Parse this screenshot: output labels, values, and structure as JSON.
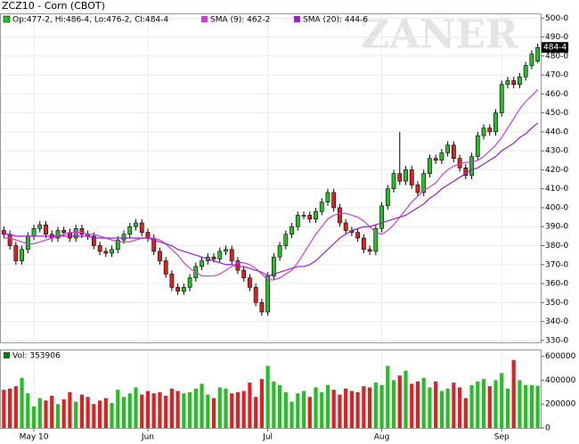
{
  "chart_data": [
    {
      "type": "candlestick",
      "title": "ZCZ10 - Corn (CBOT)",
      "ohlc_label": "Op:477-2, Hi:486-4, Lo:476-2, Cl:484-4",
      "last_label": "484-4",
      "watermark": "ZANER",
      "up_color": "#22c022",
      "down_color": "#e02020",
      "grid": true,
      "xlim": [
        -0.5,
        89.5
      ],
      "ylim": [
        329,
        502
      ],
      "yticks": [
        {
          "value": 500,
          "label": "500-0"
        },
        {
          "value": 490,
          "label": "490-0"
        },
        {
          "value": 480,
          "label": "480-0"
        },
        {
          "value": 470,
          "label": "470-0"
        },
        {
          "value": 460,
          "label": "460-0"
        },
        {
          "value": 450,
          "label": "450-0"
        },
        {
          "value": 440,
          "label": "440-0"
        },
        {
          "value": 430,
          "label": "430-0"
        },
        {
          "value": 420,
          "label": "420-0"
        },
        {
          "value": 410,
          "label": "410-0"
        },
        {
          "value": 400,
          "label": "400-0"
        },
        {
          "value": 390,
          "label": "390-0"
        },
        {
          "value": 380,
          "label": "380-0"
        },
        {
          "value": 370,
          "label": "370-0"
        },
        {
          "value": 360,
          "label": "360-0"
        },
        {
          "value": 350,
          "label": "350-0"
        },
        {
          "value": 340,
          "label": "340-0"
        },
        {
          "value": 330,
          "label": "330-0"
        }
      ],
      "open": [
        388,
        386,
        380,
        372,
        378,
        385,
        389,
        391,
        386,
        384,
        388,
        387,
        384,
        389,
        386,
        385,
        380,
        377,
        376,
        378,
        383,
        386,
        390,
        392,
        387,
        384,
        377,
        372,
        365,
        358,
        356,
        358,
        363,
        369,
        372,
        374,
        373,
        377,
        378,
        372,
        367,
        363,
        358,
        350,
        345,
        364,
        374,
        380,
        386,
        390,
        396,
        396,
        394,
        398,
        403,
        408,
        400,
        392,
        388,
        387,
        384,
        378,
        377,
        389,
        401,
        410,
        418,
        414,
        420,
        412,
        408,
        418,
        426,
        425,
        429,
        433,
        426,
        421,
        417,
        427,
        438,
        442,
        440,
        450,
        465,
        467,
        465,
        469,
        475,
        477.25
      ],
      "high": [
        390,
        388,
        382,
        380,
        387,
        391,
        393,
        393,
        388,
        390,
        390,
        389,
        391,
        391,
        388,
        387,
        382,
        379,
        380,
        385,
        388,
        392,
        394,
        394,
        389,
        386,
        379,
        374,
        367,
        360,
        360,
        365,
        371,
        374,
        376,
        376,
        379,
        380,
        380,
        374,
        369,
        365,
        360,
        352,
        366,
        376,
        382,
        388,
        392,
        398,
        398,
        398,
        400,
        405,
        410,
        410,
        402,
        394,
        390,
        389,
        386,
        380,
        391,
        403,
        412,
        420,
        440,
        422,
        422,
        414,
        420,
        428,
        428,
        431,
        435,
        435,
        428,
        423,
        429,
        440,
        444,
        444,
        452,
        467,
        469,
        469,
        471,
        477,
        483,
        486.5
      ],
      "low": [
        384,
        378,
        370,
        370,
        376,
        383,
        387,
        384,
        382,
        382,
        385,
        382,
        382,
        384,
        383,
        378,
        375,
        374,
        374,
        376,
        381,
        384,
        388,
        385,
        382,
        375,
        370,
        363,
        356,
        354,
        354,
        356,
        361,
        367,
        370,
        371,
        371,
        375,
        370,
        365,
        361,
        356,
        348,
        343,
        343,
        362,
        372,
        378,
        384,
        388,
        394,
        392,
        392,
        396,
        401,
        398,
        390,
        386,
        385,
        382,
        376,
        375,
        375,
        387,
        399,
        408,
        412,
        412,
        410,
        406,
        406,
        416,
        423,
        423,
        427,
        424,
        419,
        415,
        415,
        425,
        436,
        438,
        438,
        448,
        463,
        463,
        463,
        467,
        473,
        476.25
      ],
      "close": [
        386,
        380,
        372,
        378,
        385,
        389,
        391,
        386,
        384,
        388,
        387,
        384,
        389,
        386,
        385,
        380,
        377,
        376,
        378,
        383,
        386,
        390,
        392,
        387,
        384,
        377,
        372,
        365,
        358,
        356,
        358,
        363,
        369,
        372,
        374,
        373,
        377,
        378,
        372,
        367,
        363,
        358,
        350,
        345,
        364,
        374,
        380,
        386,
        390,
        396,
        396,
        394,
        398,
        403,
        408,
        400,
        392,
        388,
        387,
        384,
        378,
        377,
        389,
        401,
        410,
        418,
        414,
        420,
        412,
        408,
        418,
        426,
        425,
        429,
        433,
        426,
        421,
        417,
        427,
        438,
        442,
        440,
        450,
        465,
        467,
        465,
        469,
        475,
        481,
        484.5
      ],
      "series": [
        {
          "name": "SMA (9): 462-2",
          "color": "#d23cd2",
          "values": [
            384,
            384,
            383,
            382,
            381,
            381,
            382,
            383,
            384,
            385,
            386,
            387,
            387,
            387,
            386,
            386,
            385,
            384,
            383,
            382,
            382,
            382,
            383,
            384,
            384,
            384,
            383,
            381,
            378,
            375,
            371,
            368,
            366,
            364,
            364,
            364,
            365,
            367,
            369,
            371,
            371,
            370,
            368,
            365,
            362,
            362,
            363,
            365,
            367,
            371,
            376,
            381,
            386,
            390,
            394,
            396,
            397,
            397,
            396,
            395,
            393,
            390,
            387,
            386,
            388,
            391,
            395,
            399,
            403,
            406,
            409,
            411,
            413,
            417,
            420,
            422,
            423,
            424,
            424,
            425,
            427,
            430,
            433,
            437,
            442,
            447,
            452,
            456,
            459,
            462.25
          ]
        },
        {
          "name": "SMA (20): 444-6",
          "color": "#9a1fd0",
          "values": [
            386,
            386,
            385,
            385,
            385,
            385,
            385,
            385,
            385,
            385,
            385,
            385,
            385,
            385,
            385,
            384,
            384,
            384,
            384,
            384,
            384,
            384,
            384,
            384,
            384,
            383,
            382,
            381,
            380,
            378,
            377,
            376,
            375,
            374,
            373,
            372,
            371,
            370,
            370,
            369,
            369,
            368,
            367,
            366,
            364,
            365,
            366,
            367,
            368,
            369,
            369,
            370,
            372,
            375,
            378,
            381,
            384,
            386,
            388,
            389,
            390,
            390,
            391,
            392,
            393,
            394,
            395,
            396,
            398,
            400,
            402,
            405,
            407,
            410,
            412,
            414,
            416,
            418,
            420,
            421,
            423,
            425,
            427,
            430,
            432,
            434,
            437,
            439,
            442,
            444.75
          ]
        }
      ]
    },
    {
      "type": "volume",
      "title": "Vol: 353906",
      "legend_color": "#0a7a0a",
      "grid": true,
      "xlim": [
        -0.5,
        89.5
      ],
      "ylim": [
        0,
        650000
      ],
      "yticks": [
        0,
        200000,
        400000,
        600000
      ],
      "xticks": [
        {
          "value": 5,
          "label": "May 10"
        },
        {
          "value": 24,
          "label": "Jun"
        },
        {
          "value": 44,
          "label": "Jul"
        },
        {
          "value": 63,
          "label": "Aug"
        },
        {
          "value": 83,
          "label": "Sep"
        }
      ],
      "values": [
        320000,
        330000,
        350000,
        420000,
        290000,
        180000,
        250000,
        230000,
        270000,
        200000,
        240000,
        300000,
        220000,
        280000,
        260000,
        200000,
        230000,
        250000,
        210000,
        320000,
        260000,
        290000,
        340000,
        280000,
        310000,
        290000,
        300000,
        270000,
        330000,
        310000,
        290000,
        300000,
        330000,
        370000,
        280000,
        250000,
        340000,
        330000,
        290000,
        300000,
        310000,
        380000,
        260000,
        410000,
        520000,
        390000,
        360000,
        300000,
        220000,
        290000,
        310000,
        260000,
        340000,
        300000,
        360000,
        320000,
        280000,
        330000,
        310000,
        300000,
        350000,
        340000,
        380000,
        360000,
        520000,
        400000,
        440000,
        480000,
        370000,
        390000,
        420000,
        340000,
        390000,
        310000,
        330000,
        380000,
        340000,
        250000,
        360000,
        390000,
        410000,
        350000,
        400000,
        460000,
        330000,
        570000,
        400000,
        360000,
        360000,
        353906
      ]
    }
  ]
}
